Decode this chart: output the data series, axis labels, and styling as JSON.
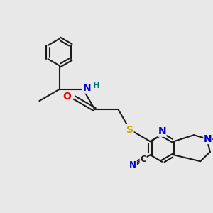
{
  "bg_color": "#e8e8e8",
  "bond_color": "#1a1a1a",
  "bond_lw": 1.5,
  "atom_colors": {
    "N": "#0000cc",
    "O": "#ff0000",
    "S": "#ccaa00",
    "C": "#1a1a1a",
    "H": "#007070"
  },
  "font_size_atom": 10,
  "font_size_small": 8.5,
  "fig_bg": "#e8e8e8"
}
